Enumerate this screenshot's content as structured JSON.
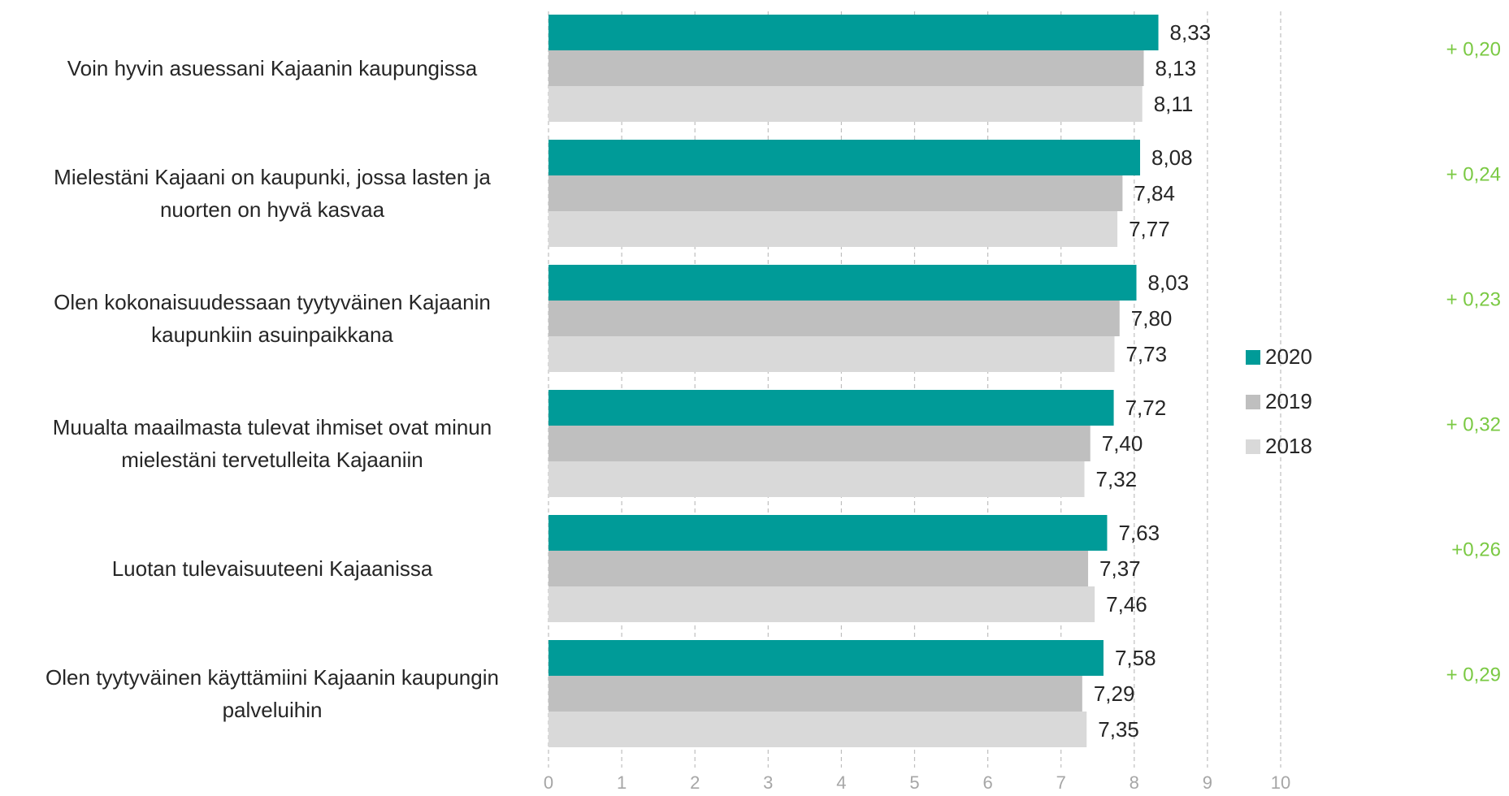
{
  "chart_data": {
    "type": "hbar",
    "categories": [
      "Voin hyvin asuessani Kajaanin kaupungissa",
      "Mielestäni Kajaani on kaupunki, jossa lasten ja nuorten on hyvä kasvaa",
      "Olen kokonaisuudessaan tyytyväinen Kajaanin kaupunkiin asuinpaikkana",
      "Muualta maailmasta tulevat ihmiset ovat minun mielestäni tervetulleita Kajaaniin",
      "Luotan tulevaisuuteeni Kajaanissa",
      "Olen tyytyväinen käyttämiini Kajaanin kaupungin palveluihin"
    ],
    "series": [
      {
        "name": "2020",
        "color": "#009b98",
        "values": [
          8.33,
          8.08,
          8.03,
          7.72,
          7.63,
          7.58
        ],
        "value_labels": [
          "8,33",
          "8,08",
          "8,03",
          "7,72",
          "7,63",
          "7,58"
        ]
      },
      {
        "name": "2019",
        "color": "#bfbfbf",
        "values": [
          8.13,
          7.84,
          7.8,
          7.4,
          7.37,
          7.29
        ],
        "value_labels": [
          "8,13",
          "7,84",
          "7,80",
          "7,40",
          "7,37",
          "7,29"
        ]
      },
      {
        "name": "2018",
        "color": "#d9d9d9",
        "values": [
          8.11,
          7.77,
          7.73,
          7.32,
          7.46,
          7.35
        ],
        "value_labels": [
          "8,11",
          "7,77",
          "7,73",
          "7,32",
          "7,46",
          "7,35"
        ]
      }
    ],
    "annotations": [
      "+ 0,20",
      "+ 0,24",
      "+ 0,23",
      "+ 0,32",
      "+0,26",
      "+ 0,29"
    ],
    "annotation_color": "#7ac943",
    "xlim": [
      0,
      10
    ],
    "xticks": [
      0,
      1,
      2,
      3,
      4,
      5,
      6,
      7,
      8,
      9,
      10
    ],
    "grid": true,
    "legend": "right"
  }
}
